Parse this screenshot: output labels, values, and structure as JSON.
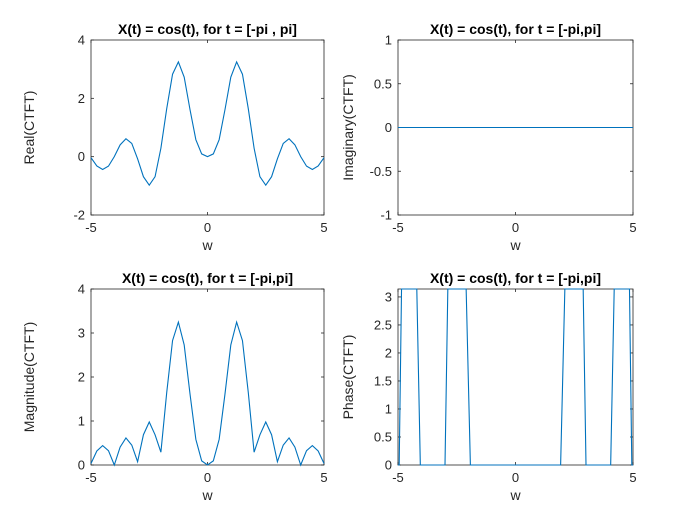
{
  "chart_data": [
    {
      "type": "line",
      "title": "X(t) = cos(t), for t = [-pi , pi]",
      "xlabel": "w",
      "ylabel": "Real(CTFT)",
      "xlim": [
        -5,
        5
      ],
      "ylim": [
        -2,
        4
      ],
      "xticks": [
        -5,
        0,
        5
      ],
      "yticks": [
        -2,
        0,
        2,
        4
      ],
      "series": [
        {
          "x": [
            -5,
            -4.75,
            -4.5,
            -4.25,
            -4,
            -3.75,
            -3.5,
            -3.25,
            -3,
            -2.75,
            -2.5,
            -2.25,
            -2,
            -1.75,
            -1.5,
            -1.25,
            -1,
            -0.75,
            -0.5,
            -0.25,
            0,
            0.25,
            0.5,
            0.75,
            1,
            1.25,
            1.5,
            1.75,
            2,
            2.25,
            2.5,
            2.75,
            3,
            3.25,
            3.5,
            3.75,
            4,
            4.25,
            4.5,
            4.75,
            5
          ],
          "values": [
            -0.035,
            -0.319,
            -0.441,
            -0.325,
            0.0,
            0.406,
            0.615,
            0.452,
            -0.075,
            -0.688,
            -0.977,
            -0.686,
            0.291,
            1.648,
            2.827,
            3.248,
            2.727,
            1.611,
            0.583,
            0.094,
            0,
            0.094,
            0.583,
            1.611,
            2.727,
            3.248,
            2.827,
            1.648,
            0.291,
            -0.686,
            -0.977,
            -0.688,
            -0.075,
            0.452,
            0.615,
            0.406,
            0.0,
            -0.325,
            -0.441,
            -0.319,
            -0.035
          ]
        }
      ]
    },
    {
      "type": "line",
      "title": "X(t) = cos(t), for t = [-pi,pi]",
      "xlabel": "w",
      "ylabel": "Imaginary(CTFT)",
      "xlim": [
        -5,
        5
      ],
      "ylim": [
        -1,
        1
      ],
      "xticks": [
        -5,
        0,
        5
      ],
      "yticks": [
        -1,
        -0.5,
        0,
        0.5,
        1
      ],
      "series": [
        {
          "x": [
            -5,
            5
          ],
          "values": [
            0,
            0
          ]
        }
      ]
    },
    {
      "type": "line",
      "title": "X(t) = cos(t), for t = [-pi,pi]",
      "xlabel": "w",
      "ylabel": "Magnitude(CTFT)",
      "xlim": [
        -5,
        5
      ],
      "ylim": [
        0,
        4
      ],
      "xticks": [
        -5,
        0,
        5
      ],
      "yticks": [
        0,
        1,
        2,
        3,
        4
      ],
      "series": [
        {
          "x": [
            -5,
            -4.75,
            -4.5,
            -4.25,
            -4,
            -3.75,
            -3.5,
            -3.25,
            -3,
            -2.75,
            -2.5,
            -2.25,
            -2,
            -1.75,
            -1.5,
            -1.25,
            -1,
            -0.75,
            -0.5,
            -0.25,
            0,
            0.25,
            0.5,
            0.75,
            1,
            1.25,
            1.5,
            1.75,
            2,
            2.25,
            2.5,
            2.75,
            3,
            3.25,
            3.5,
            3.75,
            4,
            4.25,
            4.5,
            4.75,
            5
          ],
          "values": [
            0.035,
            0.319,
            0.441,
            0.325,
            0.0,
            0.406,
            0.615,
            0.452,
            0.075,
            0.688,
            0.977,
            0.686,
            0.291,
            1.648,
            2.827,
            3.248,
            2.727,
            1.611,
            0.583,
            0.094,
            0,
            0.094,
            0.583,
            1.611,
            2.727,
            3.248,
            2.827,
            1.648,
            0.291,
            0.686,
            0.977,
            0.688,
            0.075,
            0.452,
            0.615,
            0.406,
            0.0,
            0.325,
            0.441,
            0.319,
            0.035
          ]
        }
      ]
    },
    {
      "type": "line",
      "title": "X(t) = cos(t), for t = [-pi,pi]",
      "xlabel": "w",
      "ylabel": "Phase(CTFT)",
      "xlim": [
        -5,
        5
      ],
      "ylim": [
        0,
        3.1416
      ],
      "xticks": [
        -5,
        0,
        5
      ],
      "yticks": [
        0,
        0.5,
        1,
        1.5,
        2,
        2.5,
        3
      ],
      "series": [
        {
          "x": [
            -5,
            -4.95,
            -4.85,
            -4.2,
            -4.05,
            -3.0,
            -2.88,
            -2.1,
            -1.92,
            1.92,
            2.1,
            2.88,
            3.0,
            4.05,
            4.2,
            4.85,
            4.95,
            5
          ],
          "values": [
            0,
            0,
            3.1416,
            3.1416,
            0,
            0,
            3.1416,
            3.1416,
            0,
            0,
            3.1416,
            3.1416,
            0,
            0,
            3.1416,
            3.1416,
            0,
            0
          ]
        }
      ]
    }
  ],
  "style": {
    "line_color": "#0072BD",
    "axis_color": "#262626",
    "background": "#ffffff"
  }
}
